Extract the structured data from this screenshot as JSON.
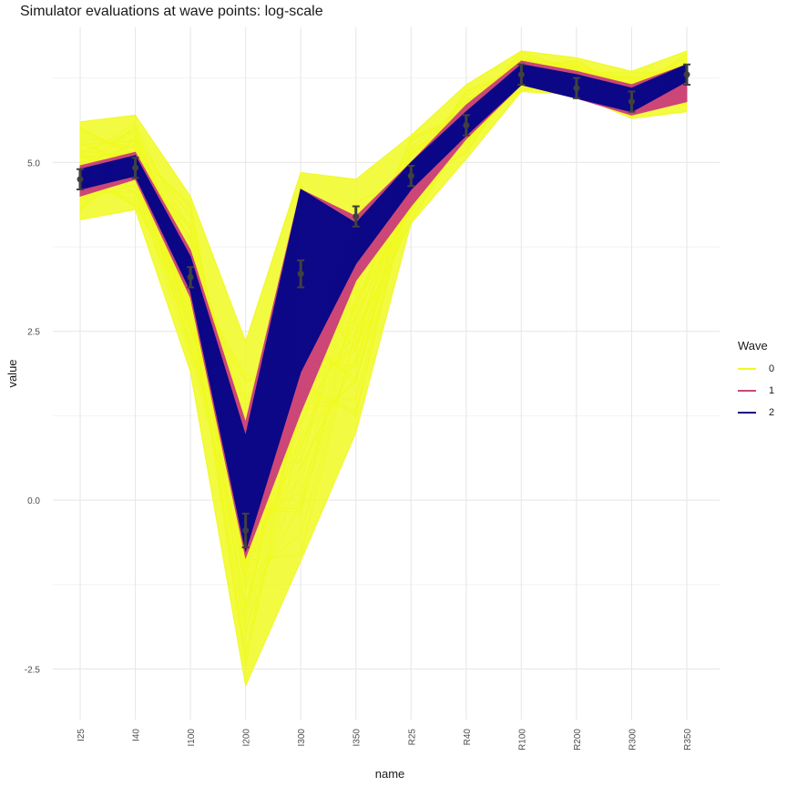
{
  "chart_data": {
    "type": "line",
    "title": "Simulator evaluations at wave points: log-scale",
    "xlabel": "name",
    "ylabel": "value",
    "categories": [
      "I25",
      "I40",
      "I100",
      "I200",
      "I300",
      "I350",
      "R25",
      "R40",
      "R100",
      "R200",
      "R300",
      "R350"
    ],
    "y_ticks": [
      -2.5,
      0.0,
      2.5,
      5.0
    ],
    "y_tick_labels": [
      "-2.5",
      "0.0",
      "2.5",
      "5.0"
    ],
    "ylim": [
      -3.25,
      7.0
    ],
    "grid": true,
    "legend": {
      "title": "Wave",
      "placement": "right",
      "entries": [
        {
          "label": "0",
          "color": "#f0f921"
        },
        {
          "label": "1",
          "color": "#cc4778"
        },
        {
          "label": "2",
          "color": "#0d0887"
        }
      ]
    },
    "bands": [
      {
        "wave": "0",
        "color": "#f0f921",
        "low": [
          4.15,
          4.3,
          1.9,
          -2.75,
          -0.9,
          1.0,
          4.1,
          5.05,
          6.05,
          6.0,
          5.65,
          5.75
        ],
        "high": [
          5.6,
          5.7,
          4.5,
          2.35,
          4.85,
          4.75,
          5.4,
          6.15,
          6.65,
          6.55,
          6.35,
          6.65
        ]
      },
      {
        "wave": "1",
        "color": "#cc4778",
        "low": [
          4.5,
          4.75,
          3.0,
          -0.85,
          1.3,
          3.25,
          4.35,
          5.35,
          6.15,
          5.95,
          5.7,
          5.9
        ],
        "high": [
          4.95,
          5.15,
          3.7,
          1.15,
          4.6,
          4.2,
          5.0,
          5.85,
          6.5,
          6.35,
          6.15,
          6.45
        ]
      },
      {
        "wave": "2",
        "color": "#0d0887",
        "low": [
          4.6,
          4.8,
          3.1,
          -0.75,
          1.9,
          3.5,
          4.6,
          5.4,
          6.15,
          5.95,
          5.75,
          6.2
        ],
        "high": [
          4.9,
          5.1,
          3.6,
          0.95,
          4.6,
          4.1,
          5.0,
          5.75,
          6.45,
          6.3,
          6.1,
          6.45
        ]
      }
    ],
    "target": {
      "color": "#404040",
      "values": [
        4.75,
        4.92,
        3.3,
        -0.45,
        3.35,
        4.2,
        4.8,
        5.55,
        6.3,
        6.1,
        5.9,
        6.3
      ],
      "errors": [
        0.15,
        0.15,
        0.15,
        0.25,
        0.2,
        0.15,
        0.15,
        0.15,
        0.15,
        0.15,
        0.15,
        0.15
      ]
    }
  }
}
